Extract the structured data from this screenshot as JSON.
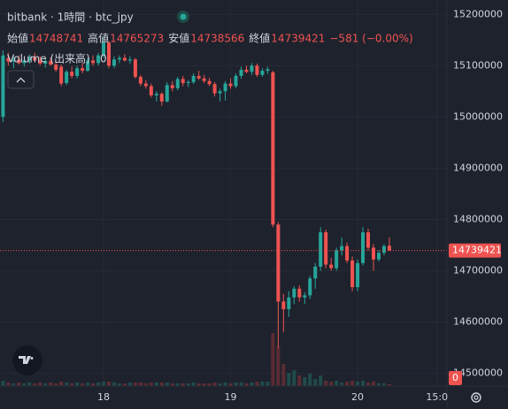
{
  "chart_data": {
    "type": "candlestick",
    "title": "bitbank · 1時間 · btc_jpy",
    "legend_labels": [
      "始値",
      "高値",
      "安値",
      "終値"
    ],
    "change_label": "−581 (−0.00%)",
    "volume_name": "Volume (出来高)",
    "volume_value": 0,
    "up_color": "#26a69a",
    "down_color": "#ef5350",
    "grid": true,
    "categories": [
      null,
      null,
      null,
      null,
      null,
      null,
      null,
      null,
      null,
      null,
      null,
      null,
      null,
      null,
      null,
      null,
      null,
      null,
      null,
      "18",
      null,
      null,
      null,
      null,
      null,
      null,
      null,
      null,
      null,
      null,
      null,
      null,
      null,
      null,
      null,
      null,
      null,
      null,
      null,
      null,
      null,
      null,
      null,
      "19",
      null,
      null,
      null,
      null,
      null,
      null,
      null,
      null,
      null,
      null,
      null,
      null,
      null,
      null,
      null,
      null,
      null,
      null,
      null,
      null,
      null,
      null,
      null,
      "20",
      null,
      null,
      null,
      null,
      null,
      null,
      null,
      null,
      null,
      null,
      null,
      null,
      null,
      null,
      "15:0"
    ],
    "open": [
      15000000,
      15115000,
      15108000,
      15112000,
      15105000,
      15110000,
      15116000,
      15110000,
      15104000,
      15109000,
      15102000,
      15098000,
      15066000,
      15088000,
      15080000,
      15095000,
      15090000,
      15110000,
      15105000,
      15120000,
      15145000,
      15100000,
      15112000,
      15115000,
      15110000,
      15112000,
      15078000,
      15065000,
      15060000,
      15042000,
      15045000,
      15030000,
      15062000,
      15056000,
      15074000,
      15066000,
      15068000,
      15080000,
      15075000,
      15070000,
      15064000,
      15046000,
      15050000,
      15065000,
      15060000,
      15080000,
      15092000,
      15088000,
      15100000,
      15082000,
      15090000,
      15087000,
      14790000,
      14640000,
      14625000,
      14648000,
      14665000,
      14648000,
      14652000,
      14685000,
      14708000,
      14775000,
      14712000,
      14705000,
      14740000,
      14748000,
      14720000,
      14668000,
      14715000,
      14775000,
      14745000,
      14722000,
      14735000,
      14748741,
      null,
      null,
      null,
      null,
      null,
      null,
      null,
      null,
      null
    ],
    "high": [
      15130000,
      15125000,
      15118000,
      15120000,
      15115000,
      15122000,
      15125000,
      15118000,
      15114000,
      15116000,
      15108000,
      15102000,
      15092000,
      15098000,
      15100000,
      15105000,
      15115000,
      15120000,
      15125000,
      15155000,
      15148000,
      15118000,
      15120000,
      15122000,
      15118000,
      15115000,
      15082000,
      15072000,
      15065000,
      15050000,
      15048000,
      15068000,
      15070000,
      15078000,
      15080000,
      15072000,
      15085000,
      15090000,
      15082000,
      15076000,
      15068000,
      15055000,
      15070000,
      15075000,
      15085000,
      15098000,
      15100000,
      15105000,
      15104000,
      15095000,
      15098000,
      15090000,
      14795000,
      14655000,
      14660000,
      14670000,
      14672000,
      14658000,
      14690000,
      14715000,
      14785000,
      14780000,
      14725000,
      14745000,
      14765000,
      14755000,
      14728000,
      14722000,
      14785000,
      14782000,
      14752000,
      14740000,
      14752000,
      14765273,
      null,
      null,
      null,
      null,
      null,
      null,
      null,
      null,
      null
    ],
    "low": [
      14990000,
      15100000,
      15095000,
      15102000,
      15098000,
      15104000,
      15108000,
      15100000,
      15096000,
      15100000,
      15088000,
      15060000,
      15062000,
      15075000,
      15075000,
      15085000,
      15088000,
      15100000,
      15100000,
      15115000,
      15095000,
      15095000,
      15105000,
      15108000,
      15104000,
      15075000,
      15060000,
      15055000,
      15038000,
      15030000,
      15022000,
      15028000,
      15050000,
      15052000,
      15060000,
      15058000,
      15064000,
      15072000,
      15066000,
      15060000,
      15040000,
      15030000,
      15032000,
      15055000,
      15056000,
      15075000,
      15085000,
      15082000,
      15078000,
      15078000,
      15084000,
      14785000,
      14550000,
      14580000,
      14610000,
      14635000,
      14640000,
      14635000,
      14645000,
      14665000,
      14700000,
      14705000,
      14700000,
      14700000,
      14730000,
      14715000,
      14660000,
      14660000,
      14710000,
      14740000,
      14700000,
      14718000,
      14730000,
      14738566,
      null,
      null,
      null,
      null,
      null,
      null,
      null,
      null,
      null
    ],
    "close": [
      15120000,
      15108000,
      15112000,
      15105000,
      15110000,
      15116000,
      15110000,
      15104000,
      15109000,
      15102000,
      15092000,
      15065000,
      15088000,
      15080000,
      15095000,
      15090000,
      15110000,
      15105000,
      15120000,
      15145000,
      15100000,
      15112000,
      15115000,
      15110000,
      15112000,
      15078000,
      15065000,
      15060000,
      15042000,
      15045000,
      15030000,
      15062000,
      15056000,
      15074000,
      15066000,
      15068000,
      15080000,
      15075000,
      15070000,
      15064000,
      15046000,
      15050000,
      15065000,
      15060000,
      15080000,
      15092000,
      15088000,
      15100000,
      15082000,
      15090000,
      15093000,
      14790000,
      14640000,
      14625000,
      14648000,
      14665000,
      14648000,
      14652000,
      14685000,
      14708000,
      14775000,
      14712000,
      14705000,
      14740000,
      14748000,
      14720000,
      14668000,
      14715000,
      14775000,
      14745000,
      14722000,
      14735000,
      14748000,
      14739421,
      null,
      null,
      null,
      null,
      null,
      null,
      null,
      null,
      null
    ],
    "volume": [
      6,
      4,
      3,
      4,
      3,
      4,
      3,
      4,
      3,
      4,
      3,
      5,
      4,
      3,
      4,
      3,
      4,
      3,
      4,
      5,
      5,
      4,
      3,
      3,
      4,
      4,
      4,
      3,
      4,
      4,
      4,
      4,
      3,
      3,
      3,
      3,
      4,
      3,
      3,
      3,
      4,
      3,
      4,
      3,
      4,
      4,
      3,
      4,
      5,
      5,
      5,
      60,
      45,
      25,
      15,
      18,
      12,
      10,
      14,
      8,
      12,
      6,
      5,
      6,
      4,
      5,
      6,
      5,
      6,
      4,
      5,
      3,
      3,
      2,
      null,
      null,
      null,
      null,
      null,
      null,
      null,
      null,
      null
    ],
    "ylim": [
      14470000,
      15228000
    ],
    "yticks": [
      14500000,
      14600000,
      14700000,
      14800000,
      14900000,
      15000000,
      15100000,
      15200000
    ]
  }
}
